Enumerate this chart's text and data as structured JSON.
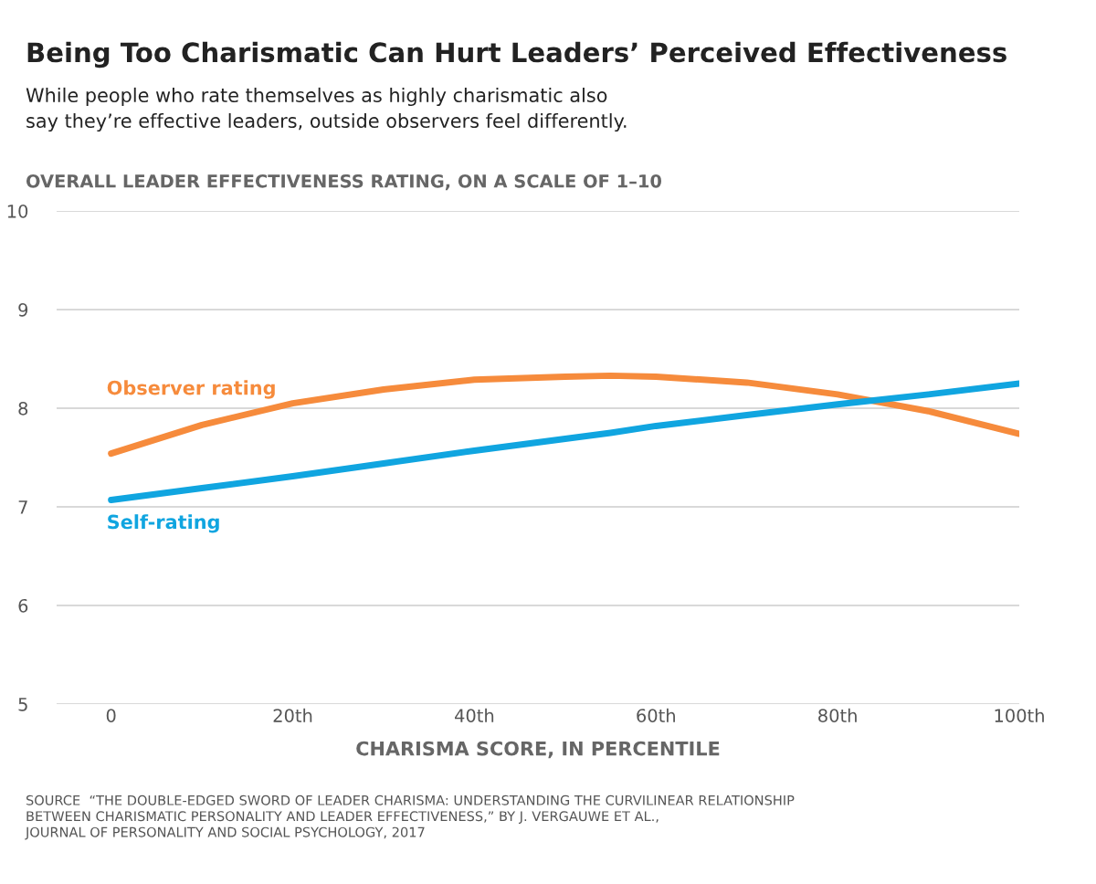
{
  "chart_data": {
    "type": "line",
    "title": "Being Too Charismatic Can Hurt Leaders’ Perceived Effectiveness",
    "subtitle": "While people who rate themselves as highly charismatic also\nsay they’re effective leaders, outside observers feel differently.",
    "ylabel": "OVERALL LEADER EFFECTIVENESS RATING, ON A SCALE OF 1–10",
    "xlabel": "CHARISMA SCORE, IN PERCENTILE",
    "x": [
      0,
      10,
      20,
      30,
      40,
      50,
      55,
      60,
      70,
      80,
      90,
      100
    ],
    "series": [
      {
        "name": "Observer rating",
        "color": "#f68b3c",
        "values": [
          7.54,
          7.83,
          8.05,
          8.19,
          8.29,
          8.32,
          8.33,
          8.32,
          8.26,
          8.14,
          7.97,
          7.74
        ]
      },
      {
        "name": "Self-rating",
        "color": "#10a5e0",
        "values": [
          7.07,
          7.19,
          7.31,
          7.44,
          7.57,
          7.69,
          7.75,
          7.82,
          7.93,
          8.04,
          8.14,
          8.25
        ]
      }
    ],
    "xlim": [
      -6,
      100
    ],
    "xticks": [
      0,
      {
        "value": 20,
        "label": "20th"
      },
      {
        "value": 40,
        "label": "40th"
      },
      {
        "value": 60,
        "label": "60th"
      },
      {
        "value": 80,
        "label": "80th"
      },
      {
        "value": 100,
        "label": "100th"
      }
    ],
    "ylim": [
      5,
      10
    ],
    "yticks": [
      5,
      6,
      7,
      8,
      9,
      10
    ],
    "grid": "y",
    "legend": false,
    "marker": "none",
    "line_style": "solid",
    "annotations": [
      "SOURCE  “THE DOUBLE-EDGED SWORD OF LEADER CHARISMA: UNDERSTANDING THE CURVILINEAR RELATIONSHIP\nBETWEEN CHARISMATIC PERSONALITY AND LEADER EFFECTIVENESS,” BY J. VERGAUWE ET AL.,\nJOURNAL OF PERSONALITY AND SOCIAL PSYCHOLOGY, 2017"
    ]
  }
}
